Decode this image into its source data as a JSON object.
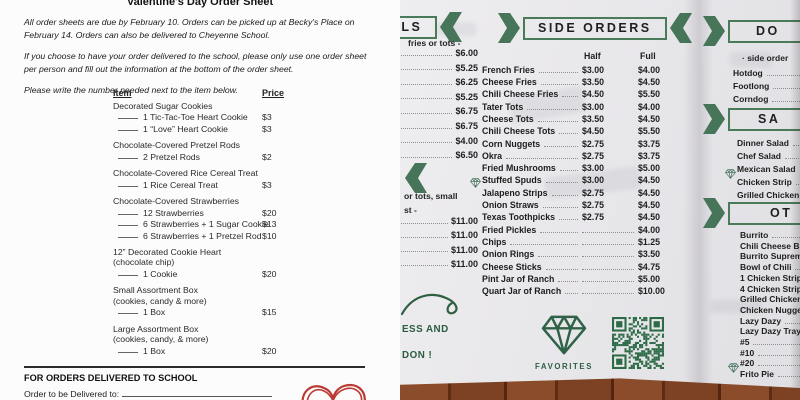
{
  "order_sheet": {
    "title": "Valentine's Day Order Sheet",
    "intro": [
      "All order sheets are due by February 10. Orders can be picked up at Becky's Place on February 14. Orders can also be delivered to Cheyenne School.",
      "If you choose to have your order delivered to the school, please only use one order sheet per person and fill out the information at the bottom of the order sheet.",
      "Please write the number needed next to the item below."
    ],
    "columns": {
      "item": "Item",
      "price": "Price"
    },
    "groups": [
      {
        "name": "Decorated Sugar Cookies",
        "lines": [
          {
            "label": "1 Tic-Tac-Toe Heart Cookie",
            "price": "$3"
          },
          {
            "label": "1 “Love” Heart Cookie",
            "price": "$3"
          }
        ]
      },
      {
        "name": "Chocolate-Covered Pretzel Rods",
        "lines": [
          {
            "label": "2 Pretzel Rods",
            "price": "$2"
          }
        ]
      },
      {
        "name": "Chocolate-Covered Rice Cereal Treat",
        "lines": [
          {
            "label": "1 Rice Cereal Treat",
            "price": "$3"
          }
        ]
      },
      {
        "name": "Chocolate-Covered Strawberries",
        "lines": [
          {
            "label": "12 Strawberries",
            "price": "$20"
          },
          {
            "label": "6 Strawberries + 1 Sugar Cookie",
            "price": "$13"
          },
          {
            "label": "6 Strawberries + 1 Pretzel Rod",
            "price": "$10"
          }
        ]
      },
      {
        "name": "12” Decorated Cookie Heart",
        "note": "(chocolate chip)",
        "lines": [
          {
            "label": "1 Cookie",
            "price": "$20"
          }
        ]
      },
      {
        "name": "Small Assortment Box",
        "note": "(cookies, candy & more)",
        "lines": [
          {
            "label": "1 Box",
            "price": "$15"
          }
        ]
      },
      {
        "name": "Large Assortment Box",
        "note": "(cookies, candy, & more)",
        "lines": [
          {
            "label": "1 Box",
            "price": "$20"
          }
        ]
      }
    ],
    "footer": {
      "heading": "FOR ORDERS DELIVERED TO SCHOOL",
      "deliver_label": "Order to be Delivered to:"
    }
  },
  "menu": {
    "accent_green": "#3b6b4d",
    "meals_column": {
      "banner": "eals",
      "subtitle": "fries or tots -",
      "prices": [
        "$6.00",
        "$5.25",
        "$6.25",
        "$5.25",
        "$6.75",
        "$6.75",
        "$4.00",
        "$6.50"
      ],
      "subtitle2": "or tots, small",
      "subtitle3": "st -",
      "prices2": [
        "$11.00",
        "$11.00",
        "$11.00",
        "$11.00"
      ],
      "green_note": [
        "ESS AND",
        "DON !"
      ]
    },
    "side_orders": {
      "banner": "Side Orders",
      "columns": {
        "half": "Half",
        "full": "Full"
      },
      "items": [
        {
          "name": "French Fries",
          "half": "$3.00",
          "full": "$4.00"
        },
        {
          "name": "Cheese Fries",
          "half": "$3.50",
          "full": "$4.50"
        },
        {
          "name": "Chili Cheese Fries",
          "half": "$4.50",
          "full": "$5.50"
        },
        {
          "name": "Tater Tots",
          "half": "$3.00",
          "full": "$4.00"
        },
        {
          "name": "Cheese Tots",
          "half": "$3.50",
          "full": "$4.50"
        },
        {
          "name": "Chili Cheese Tots",
          "half": "$4.50",
          "full": "$5.50"
        },
        {
          "name": "Corn Nuggets",
          "half": "$2.75",
          "full": "$3.75"
        },
        {
          "name": "Okra",
          "half": "$2.75",
          "full": "$3.75"
        },
        {
          "name": "Fried Mushrooms",
          "half": "$3.00",
          "full": "$5.00"
        },
        {
          "name": "Stuffed Spuds",
          "half": "$3.00",
          "full": "$4.50",
          "favorite": true
        },
        {
          "name": "Jalapeno Strips",
          "half": "$2.75",
          "full": "$4.50"
        },
        {
          "name": "Onion Straws",
          "half": "$2.75",
          "full": "$4.50"
        },
        {
          "name": "Texas Toothpicks",
          "half": "$2.75",
          "full": "$4.50"
        },
        {
          "name": "Fried Pickles",
          "full": "$4.00"
        },
        {
          "name": "Chips",
          "full": "$1.25"
        },
        {
          "name": "Onion Rings",
          "full": "$3.50"
        },
        {
          "name": "Cheese Sticks",
          "full": "$4.75"
        },
        {
          "name": "Pint Jar of Ranch",
          "full": "$5.00"
        },
        {
          "name": "Quart Jar of Ranch",
          "full": "$10.00"
        }
      ],
      "favorites_label": "Favorites"
    },
    "dogs_section": {
      "banner": "Do",
      "subtitle": "· side order",
      "items": [
        {
          "name": "Hotdog"
        },
        {
          "name": "Footlong"
        },
        {
          "name": "Corndog"
        }
      ]
    },
    "salads_section": {
      "banner": "Sa",
      "items": [
        {
          "name": "Dinner Salad"
        },
        {
          "name": "Chef Salad"
        },
        {
          "name": "Mexican Salad",
          "favorite": true
        },
        {
          "name": "Chicken Strip"
        },
        {
          "name": "Grilled Chicken"
        }
      ]
    },
    "other_section": {
      "banner": "Ot",
      "items": [
        {
          "name": "Burrito"
        },
        {
          "name": "Chili Cheese Burrit"
        },
        {
          "name": "Burrito Supreme"
        },
        {
          "name": "Bowl of Chili"
        },
        {
          "name": "1 Chicken Strip"
        },
        {
          "name": "4 Chicken Strips"
        },
        {
          "name": "Grilled Chicken"
        },
        {
          "name": "Chicken Nuggets"
        },
        {
          "name": "Lazy Dazy"
        },
        {
          "name": "Lazy Dazy Tray"
        },
        {
          "name": "#5"
        },
        {
          "name": "#10"
        },
        {
          "name": "#20",
          "favorite": true
        },
        {
          "name": "Frito Pie"
        }
      ]
    }
  }
}
